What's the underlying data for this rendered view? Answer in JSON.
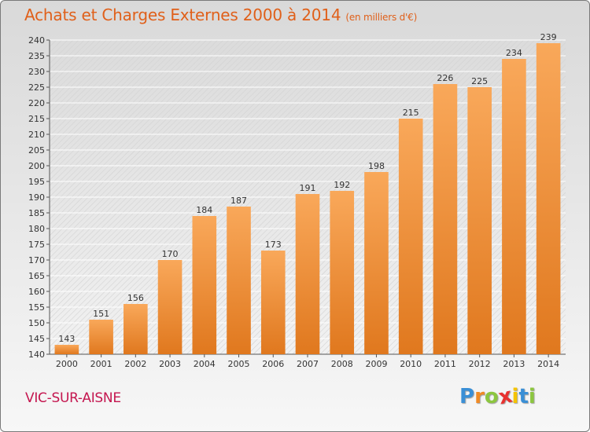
{
  "title": "Achats et Charges Externes 2000 à 2014",
  "subtitle": "(en milliers d'€)",
  "commune": "VIC-SUR-AISNE",
  "logo": {
    "letters": [
      "P",
      "r",
      "o",
      "x",
      "i",
      "t",
      "i"
    ],
    "colors": [
      "#3a8fd6",
      "#f08a24",
      "#8cc63f",
      "#e8312f",
      "#f5c400",
      "#3a8fd6",
      "#8cc63f"
    ]
  },
  "colors": {
    "bar_light": "#f9a85a",
    "bar_dark": "#e0781e",
    "title": "#e0601a",
    "commune": "#c4164f"
  },
  "chart_data": {
    "type": "bar",
    "categories": [
      "2000",
      "2001",
      "2002",
      "2003",
      "2004",
      "2005",
      "2006",
      "2007",
      "2008",
      "2009",
      "2010",
      "2011",
      "2012",
      "2013",
      "2014"
    ],
    "values": [
      143,
      151,
      156,
      170,
      184,
      187,
      173,
      191,
      192,
      198,
      215,
      226,
      225,
      234,
      239
    ],
    "data_labels": [
      "143",
      "151",
      "156",
      "170",
      "184",
      "187",
      "173",
      "191",
      "192",
      "198",
      "215",
      "226",
      "225",
      "234",
      "239"
    ],
    "yticks": [
      140,
      145,
      150,
      155,
      160,
      165,
      170,
      175,
      180,
      185,
      190,
      195,
      200,
      205,
      210,
      215,
      220,
      225,
      230,
      235,
      240
    ],
    "ytick_labels": [
      "140",
      "145",
      "150",
      "155",
      "160",
      "165",
      "170",
      "175",
      "180",
      "185",
      "190",
      "195",
      "200",
      "205",
      "210",
      "215",
      "220",
      "225",
      "230",
      "235",
      "240"
    ],
    "ylim": [
      140,
      240
    ],
    "grid": true
  }
}
